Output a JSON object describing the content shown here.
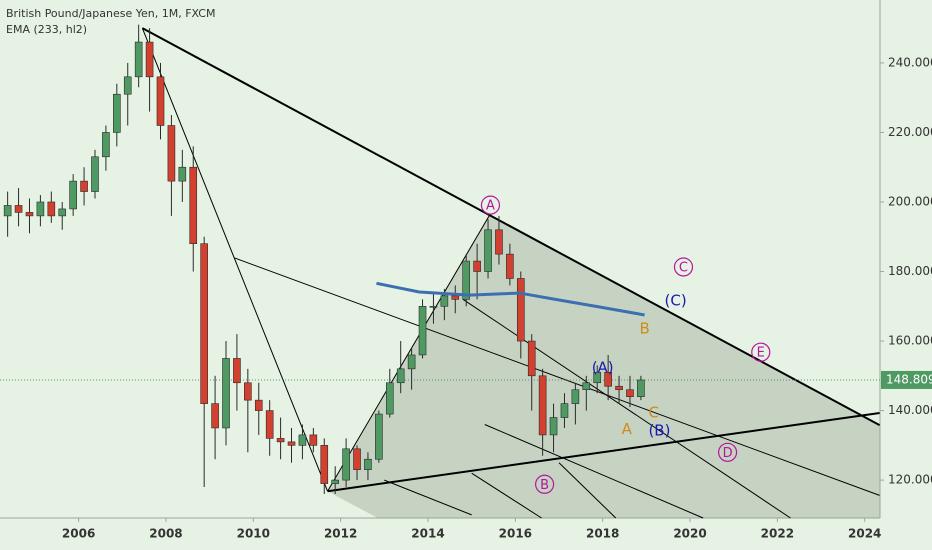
{
  "chart_data": {
    "type": "candlestick",
    "title": "British Pound/Japanese Yen, 1M, FXCM",
    "subtitle": "EMA (233, hl2)",
    "xlim": [
      2004.2,
      2024.35
    ],
    "xticks": [
      2006,
      2008,
      2010,
      2012,
      2014,
      2016,
      2018,
      2020,
      2022,
      2024
    ],
    "ylim": [
      109.1,
      258.1
    ],
    "yticks": [
      {
        "value": 120,
        "label": "120.000"
      },
      {
        "value": 140,
        "label": "140.000"
      },
      {
        "value": 160,
        "label": "160.000"
      },
      {
        "value": 180,
        "label": "180.000"
      },
      {
        "value": 200,
        "label": "200.000"
      },
      {
        "value": 220,
        "label": "220.000"
      },
      {
        "value": 240,
        "label": "240.000"
      }
    ],
    "up_color": "#4f9a63",
    "down_color": "#d2402f",
    "x": [
      2004.375,
      2004.625,
      2004.875,
      2005.125,
      2005.375,
      2005.625,
      2005.875,
      2006.125,
      2006.375,
      2006.625,
      2006.875,
      2007.125,
      2007.375,
      2007.625,
      2007.875,
      2008.125,
      2008.375,
      2008.625,
      2008.875,
      2009.125,
      2009.375,
      2009.625,
      2009.875,
      2010.125,
      2010.375,
      2010.625,
      2010.875,
      2011.125,
      2011.375,
      2011.625,
      2011.875,
      2012.125,
      2012.375,
      2012.625,
      2012.875,
      2013.125,
      2013.375,
      2013.625,
      2013.875,
      2014.125,
      2014.375,
      2014.625,
      2014.875,
      2015.125,
      2015.375,
      2015.625,
      2015.875,
      2016.125,
      2016.375,
      2016.625,
      2016.875,
      2017.125,
      2017.375,
      2017.625,
      2017.875,
      2018.125,
      2018.375,
      2018.625,
      2018.875
    ],
    "open": [
      196,
      199,
      197,
      196,
      200,
      196,
      198,
      206,
      203,
      213,
      220,
      231,
      236,
      246,
      236,
      222,
      206,
      210,
      188,
      142,
      135,
      155,
      148,
      143,
      140,
      132,
      131,
      130,
      133,
      130,
      119,
      120,
      129,
      123,
      126,
      139,
      148,
      152,
      156,
      170,
      170,
      173,
      172,
      183,
      180,
      192,
      185,
      178,
      160,
      150,
      133,
      138,
      142,
      146,
      148,
      151,
      147,
      146,
      144
    ],
    "high": [
      203,
      204,
      201,
      202,
      203,
      200,
      208,
      210,
      215,
      222,
      234,
      240,
      251,
      250,
      240,
      225,
      215,
      216,
      190,
      150,
      160,
      162,
      152,
      148,
      143,
      138,
      135,
      136,
      135,
      132,
      124,
      132,
      130,
      128,
      140,
      152,
      160,
      158,
      172,
      174,
      175,
      176,
      185,
      188,
      195,
      196,
      188,
      180,
      162,
      152,
      142,
      145,
      148,
      150,
      153,
      156,
      150,
      150,
      150
    ],
    "low": [
      190,
      193,
      191,
      193,
      194,
      192,
      196,
      199,
      201,
      209,
      216,
      222,
      233,
      226,
      218,
      196,
      200,
      180,
      118,
      126,
      130,
      140,
      128,
      133,
      127,
      126,
      125,
      126,
      128,
      116,
      116,
      118,
      120,
      120,
      125,
      138,
      145,
      146,
      155,
      165,
      166,
      168,
      170,
      172,
      178,
      182,
      176,
      155,
      140,
      127,
      128,
      135,
      136,
      140,
      145,
      143,
      142,
      141,
      143
    ],
    "close": [
      199,
      197,
      196,
      200,
      196,
      198,
      206,
      203,
      213,
      220,
      231,
      236,
      246,
      236,
      222,
      206,
      210,
      188,
      142,
      135,
      155,
      148,
      143,
      140,
      132,
      131,
      130,
      133,
      130,
      119,
      120,
      129,
      123,
      126,
      139,
      148,
      152,
      156,
      170,
      170,
      173,
      172,
      183,
      180,
      192,
      185,
      178,
      160,
      150,
      133,
      138,
      142,
      146,
      148,
      151,
      147,
      146,
      144,
      148.809
    ],
    "ema": {
      "color": "#3d6fb0",
      "x": [
        2012.82,
        2013.8,
        2014.95,
        2016.1,
        2017.0,
        2017.93,
        2018.96
      ],
      "values": [
        176.6,
        174.1,
        173.2,
        173.8,
        171.8,
        169.8,
        167.5
      ]
    },
    "shaded_area": {
      "x": [
        2011.7,
        2015.4,
        2024.34,
        2024.34,
        2012.85
      ],
      "y": [
        116.8,
        196,
        135.8,
        109.1,
        109.1
      ]
    },
    "trend_lines": [
      {
        "width": 2,
        "x": [
          2007.46,
          2024.34
        ],
        "y": [
          250,
          135.8
        ]
      },
      {
        "width": 2,
        "x": [
          2011.7,
          2024.34
        ],
        "y": [
          116.8,
          139.3
        ]
      },
      {
        "width": 1,
        "x": [
          2007.46,
          2011.7
        ],
        "y": [
          250,
          116.8
        ]
      },
      {
        "width": 1,
        "x": [
          2009.57,
          2024.34
        ],
        "y": [
          183.9,
          115.6
        ]
      },
      {
        "width": 1,
        "x": [
          2013.0,
          2015.0
        ],
        "y": [
          120,
          110
        ]
      },
      {
        "width": 1,
        "x": [
          2011.7,
          2015.4
        ],
        "y": [
          116.8,
          196
        ]
      },
      {
        "width": 1,
        "x": [
          2014.8,
          2022.3
        ],
        "y": [
          172,
          109.1
        ]
      },
      {
        "width": 1,
        "x": [
          2015.0,
          2016.6
        ],
        "y": [
          122,
          109.1
        ]
      },
      {
        "width": 1,
        "x": [
          2017.0,
          2018.3
        ],
        "y": [
          125,
          109.1
        ]
      },
      {
        "width": 1,
        "x": [
          2015.3,
          2020.3
        ],
        "y": [
          136,
          109.1
        ]
      }
    ],
    "wave_labels": [
      {
        "text": "A",
        "x": 2015.43,
        "y": 199.1,
        "color": "#b5169e",
        "circled": true
      },
      {
        "text": "B",
        "x": 2016.67,
        "y": 118.8,
        "color": "#b5169e",
        "circled": true
      },
      {
        "text": "C",
        "x": 2019.85,
        "y": 181.3,
        "color": "#b5169e",
        "circled": true
      },
      {
        "text": "D",
        "x": 2020.86,
        "y": 128.0,
        "color": "#b5169e",
        "circled": true
      },
      {
        "text": "E",
        "x": 2021.62,
        "y": 156.8,
        "color": "#b5169e",
        "circled": true
      },
      {
        "text": "(A)",
        "x": 2018.0,
        "y": 152.5,
        "color": "#1a1ab0",
        "circled": false
      },
      {
        "text": "(B)",
        "x": 2019.3,
        "y": 134.4,
        "color": "#1a1ab0",
        "circled": false
      },
      {
        "text": "(C)",
        "x": 2019.67,
        "y": 171.8,
        "color": "#1a1ab0",
        "circled": false
      },
      {
        "text": "B",
        "x": 2018.96,
        "y": 163.7,
        "color": "#d08a17",
        "circled": false
      },
      {
        "text": "C",
        "x": 2019.17,
        "y": 139.6,
        "color": "#d08a17",
        "circled": false
      },
      {
        "text": "A",
        "x": 2018.55,
        "y": 134.9,
        "color": "#d08a17",
        "circled": false
      }
    ],
    "last_price": 148.809,
    "last_price_color": "#4f9a63"
  }
}
